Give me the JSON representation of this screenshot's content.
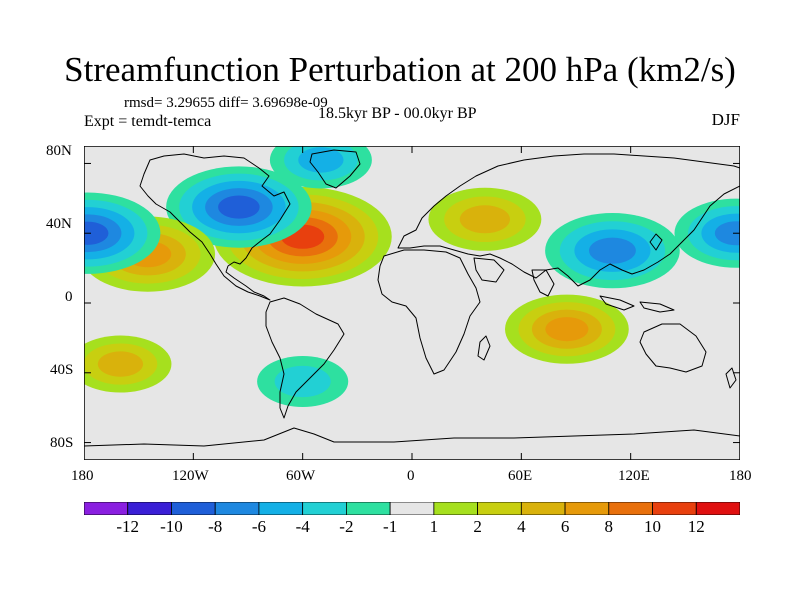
{
  "title": "Streamfunction Perturbation at 200 hPa (km2/s)",
  "stats": {
    "rmsd_text": "rmsd= 3.29655 diff= 3.69698e-09"
  },
  "experiment": "Expt = temdt-temca",
  "period": "18.5kyr BP - 00.0kyr BP",
  "season": "DJF",
  "lat_labels": [
    "80N",
    "40N",
    "0",
    "40S",
    "80S"
  ],
  "lon_labels": [
    "180",
    "120W",
    "60W",
    "0",
    "60E",
    "120E",
    "180"
  ],
  "colorbar": {
    "labels": [
      "-12",
      "-10",
      "-8",
      "-6",
      "-4",
      "-2",
      "-1",
      "1",
      "2",
      "4",
      "6",
      "8",
      "10",
      "12"
    ],
    "colors": [
      "#8a1fe0",
      "#3a1fd6",
      "#1f5fd8",
      "#1e88e0",
      "#14b0e6",
      "#22d0d4",
      "#2ee0a0",
      "#e6e6e6",
      "#a6e01e",
      "#c8cf10",
      "#d9b20c",
      "#e69a0a",
      "#e8700c",
      "#e8400e",
      "#e01010"
    ]
  },
  "chart_data": {
    "type": "heatmap",
    "title": "Streamfunction Perturbation at 200 hPa (km2/s)",
    "units": "km2/s",
    "levels": [
      -12,
      -10,
      -8,
      -6,
      -4,
      -2,
      -1,
      1,
      2,
      4,
      6,
      8,
      10,
      12
    ],
    "lon_range": [
      -180,
      180
    ],
    "lat_range": [
      -90,
      90
    ],
    "anomalies": [
      {
        "name": "north-atlantic-high",
        "lon": -60,
        "lat": 38,
        "value": 12
      },
      {
        "name": "north-america-low",
        "lon": -95,
        "lat": 55,
        "value": -9
      },
      {
        "name": "central-pacific-high",
        "lon": -145,
        "lat": 28,
        "value": 8
      },
      {
        "name": "dateline-low",
        "lon": -178,
        "lat": 40,
        "value": -9
      },
      {
        "name": "east-asia-low",
        "lon": 110,
        "lat": 30,
        "value": -8
      },
      {
        "name": "west-pacific-low",
        "lon": 178,
        "lat": 40,
        "value": -7
      },
      {
        "name": "arctic-low",
        "lon": -50,
        "lat": 82,
        "value": -5
      },
      {
        "name": "north-africa-europe-high",
        "lon": 40,
        "lat": 48,
        "value": 6
      },
      {
        "name": "indian-ocean-high",
        "lon": 85,
        "lat": -15,
        "value": 7
      },
      {
        "name": "south-pacific-high",
        "lon": -160,
        "lat": -35,
        "value": 5
      },
      {
        "name": "southern-ocean-low",
        "lon": -60,
        "lat": -45,
        "value": -4
      }
    ]
  }
}
